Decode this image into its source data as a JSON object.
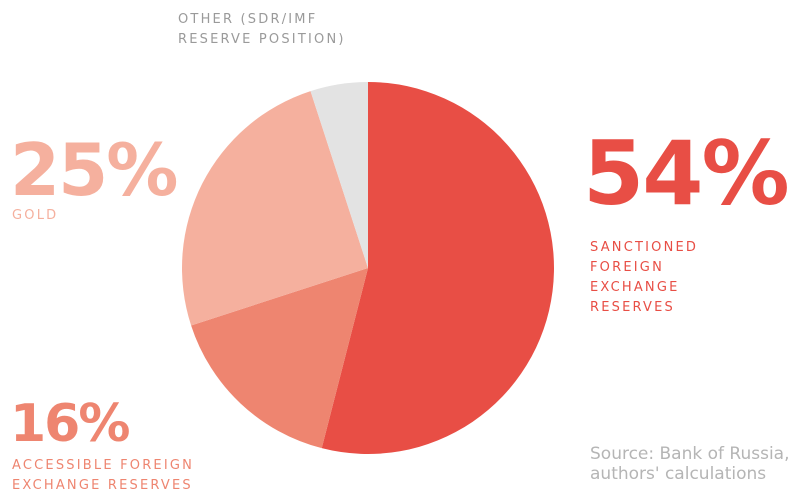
{
  "chart_data": {
    "type": "pie",
    "categories": [
      "SANCTIONED FOREIGN EXCHANGE RESERVES",
      "ACCESSIBLE FOREIGN EXCHANGE RESERVES",
      "GOLD",
      "OTHER (SDR/IMF RESERVE POSITION)"
    ],
    "values": [
      54,
      16,
      25,
      5
    ],
    "value_labels": [
      "54%",
      "16%",
      "25%",
      null
    ],
    "colors": [
      "#e84e45",
      "#ee8570",
      "#f5b09e",
      "#e3e3e3"
    ],
    "source": "Source: Bank of Russia, authors' calculations"
  }
}
